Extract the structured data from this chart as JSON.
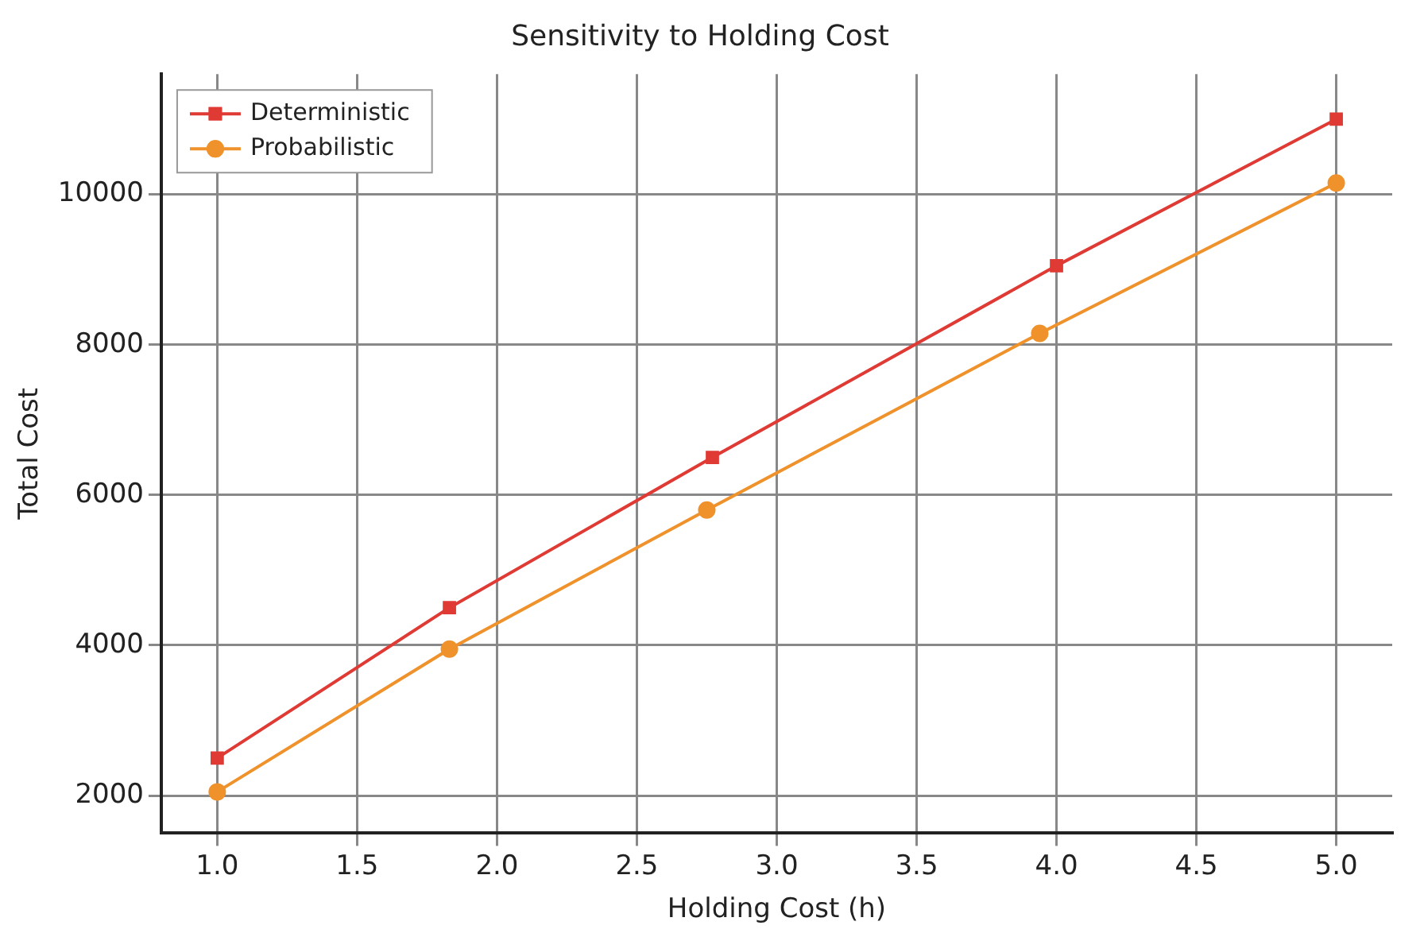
{
  "chart_data": {
    "type": "line",
    "title": "Sensitivity to Holding Cost",
    "xlabel": "Holding Cost (h)",
    "ylabel": "Total Cost",
    "series": [
      {
        "name": "Deterministic",
        "color": "#e03a35",
        "marker": "square",
        "x": [
          1.0,
          1.83,
          2.77,
          4.0,
          5.0
        ],
        "values": [
          2500,
          4500,
          6500,
          9050,
          11000
        ]
      },
      {
        "name": "Probabilistic",
        "color": "#f0922b",
        "marker": "circle",
        "x": [
          1.0,
          1.83,
          2.75,
          3.94,
          5.0
        ],
        "values": [
          2050,
          3950,
          5800,
          8150,
          10150
        ]
      }
    ],
    "xlim": [
      0.8,
      5.2
    ],
    "xticks": [
      {
        "value": 1,
        "label": "1.0"
      },
      1.5,
      {
        "value": 2,
        "label": "2.0"
      },
      2.5,
      {
        "value": 3,
        "label": "3.0"
      },
      3.5,
      {
        "value": 4,
        "label": "4.0"
      },
      4.5,
      {
        "value": 5,
        "label": "5.0"
      }
    ],
    "ylim": [
      1500,
      11600
    ],
    "yticks": [
      2000,
      4000,
      6000,
      8000,
      10000
    ],
    "grid": true,
    "legend": "top left",
    "line_style": "solid"
  }
}
